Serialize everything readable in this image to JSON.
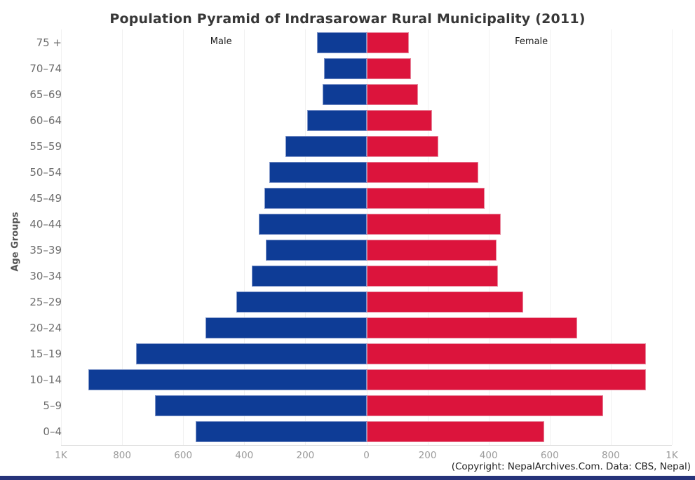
{
  "title": "Population Pyramid of Indrasarowar Rural Municipality (2011)",
  "footer": "(Copyright: NepalArchives.Com. Data: CBS, Nepal)",
  "y_axis_title": "Age Groups",
  "series_labels": {
    "male": "Male",
    "female": "Female"
  },
  "colors": {
    "male": "#0e3c96",
    "female": "#dc143c",
    "bottom_strip": "#26337a"
  },
  "chart_data": {
    "type": "bar",
    "subtype": "population-pyramid",
    "title": "Population Pyramid of Indrasarowar Rural Municipality (2011)",
    "ylabel": "Age Groups",
    "xlabel": "",
    "grid": true,
    "xlim": [
      -1000,
      1000
    ],
    "x_ticks": [
      "1K",
      "800",
      "600",
      "400",
      "200",
      "0",
      "200",
      "400",
      "600",
      "800",
      "1K"
    ],
    "categories": [
      "75 +",
      "70–74",
      "65–69",
      "60–64",
      "55–59",
      "50–54",
      "45–49",
      "40–44",
      "35–39",
      "30–34",
      "25–29",
      "20–24",
      "15–19",
      "10–14",
      "5–9",
      "0–4"
    ],
    "series": [
      {
        "name": "Male",
        "color": "#0e3c96",
        "values": [
          161,
          138,
          144,
          194,
          266,
          317,
          334,
          353,
          330,
          376,
          426,
          527,
          755,
          910,
          693,
          560
        ]
      },
      {
        "name": "Female",
        "color": "#dc143c",
        "values": [
          138,
          145,
          169,
          215,
          236,
          367,
          386,
          439,
          426,
          430,
          514,
          690,
          916,
          916,
          775,
          581
        ]
      }
    ]
  }
}
